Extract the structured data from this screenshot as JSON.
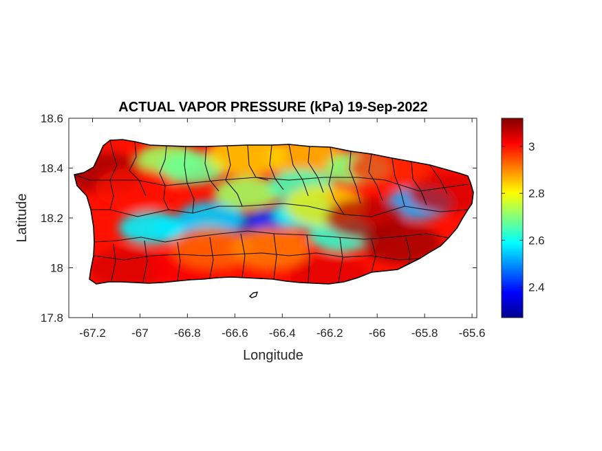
{
  "chart_data": {
    "type": "heatmap",
    "title": "ACTUAL VAPOR PRESSURE (kPa) 19-Sep-2022",
    "xlabel": "Longitude",
    "ylabel": "Latitude",
    "xlim": [
      -67.3,
      -65.58
    ],
    "ylim": [
      17.8,
      18.6
    ],
    "x_ticks": [
      -67.2,
      -67,
      -66.8,
      -66.6,
      -66.4,
      -66.2,
      -66,
      -65.8,
      -65.6
    ],
    "x_tick_labels": [
      "-67.2",
      "-67",
      "-66.8",
      "-66.6",
      "-66.4",
      "-66.2",
      "-66",
      "-65.8",
      "-65.6"
    ],
    "y_ticks": [
      17.8,
      18,
      18.2,
      18.4,
      18.6
    ],
    "y_tick_labels": [
      "17.8",
      "18",
      "18.2",
      "18.4",
      "18.6"
    ],
    "colorbar": {
      "colormap": "jet",
      "range": [
        2.27,
        3.12
      ],
      "ticks": [
        2.4,
        2.6,
        2.8,
        3
      ],
      "tick_labels": [
        "2.4",
        "2.6",
        "2.8",
        "3"
      ]
    },
    "region": "Puerto Rico",
    "grid": false,
    "fields": [
      {
        "lon": -66.58,
        "lat": 18.17,
        "value": 2.3
      },
      {
        "lon": -66.45,
        "lat": 18.19,
        "value": 2.42
      },
      {
        "lon": -66.85,
        "lat": 18.16,
        "value": 2.48
      },
      {
        "lon": -66.95,
        "lat": 18.16,
        "value": 2.58
      },
      {
        "lon": -66.7,
        "lat": 18.2,
        "value": 2.55
      },
      {
        "lon": -66.3,
        "lat": 18.22,
        "value": 2.6
      },
      {
        "lon": -66.15,
        "lat": 18.13,
        "value": 2.63
      },
      {
        "lon": -65.82,
        "lat": 18.26,
        "value": 2.52
      },
      {
        "lon": -66.88,
        "lat": 18.43,
        "value": 2.72
      },
      {
        "lon": -66.78,
        "lat": 18.4,
        "value": 2.68
      },
      {
        "lon": -66.55,
        "lat": 18.45,
        "value": 2.82
      },
      {
        "lon": -66.3,
        "lat": 18.44,
        "value": 2.84
      },
      {
        "lon": -66.55,
        "lat": 18.3,
        "value": 2.72
      },
      {
        "lon": -66.32,
        "lat": 18.33,
        "value": 2.65
      },
      {
        "lon": -66.08,
        "lat": 18.4,
        "value": 2.7
      },
      {
        "lon": -66.22,
        "lat": 18.25,
        "value": 2.82
      },
      {
        "lon": -67.15,
        "lat": 18.38,
        "value": 3.1
      },
      {
        "lon": -67.02,
        "lat": 18.32,
        "value": 3.0
      },
      {
        "lon": -67.05,
        "lat": 18.0,
        "value": 3.05
      },
      {
        "lon": -66.8,
        "lat": 18.0,
        "value": 3.02
      },
      {
        "lon": -66.5,
        "lat": 17.97,
        "value": 3.0
      },
      {
        "lon": -66.2,
        "lat": 17.97,
        "value": 3.04
      },
      {
        "lon": -66.05,
        "lat": 18.2,
        "value": 3.08
      },
      {
        "lon": -65.9,
        "lat": 18.1,
        "value": 3.1
      },
      {
        "lon": -65.7,
        "lat": 18.3,
        "value": 3.05
      },
      {
        "lon": -65.95,
        "lat": 18.4,
        "value": 2.98
      },
      {
        "lon": -66.7,
        "lat": 18.08,
        "value": 2.92
      },
      {
        "lon": -66.45,
        "lat": 18.08,
        "value": 2.9
      }
    ]
  }
}
